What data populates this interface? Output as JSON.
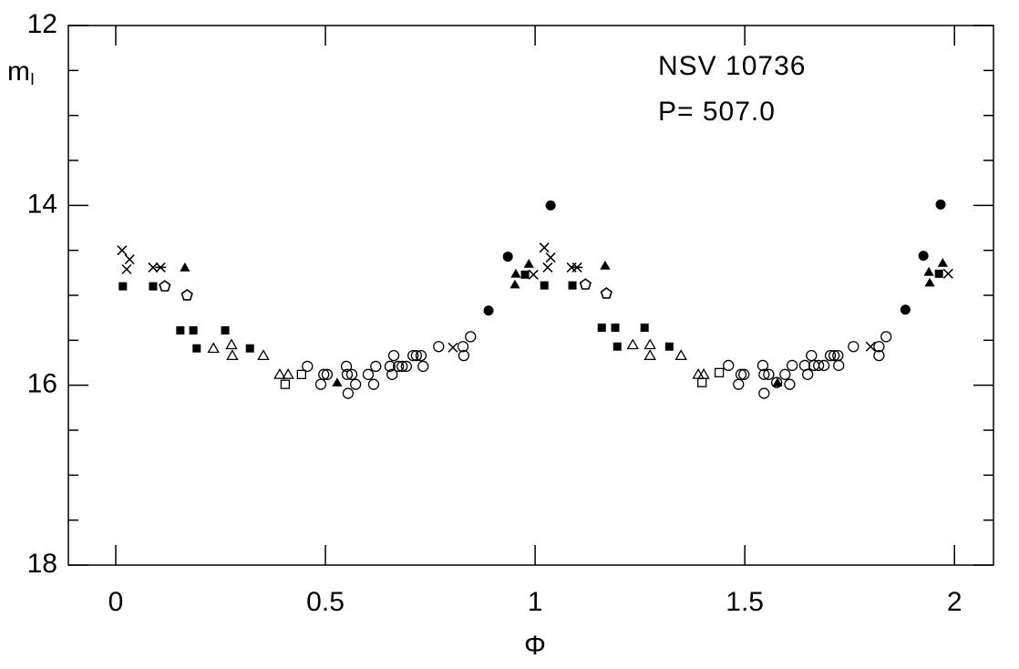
{
  "chart_data": {
    "type": "scatter",
    "xlabel": "Φ",
    "ylabel": "m",
    "ylabel_sub": "I",
    "annotations": [
      "NSV 10736",
      "P= 507.0"
    ],
    "xlim": [
      -0.113,
      2.093
    ],
    "ylim": [
      18,
      12
    ],
    "inverted_y": true,
    "xticks": [
      0,
      0.5,
      1,
      1.5,
      2
    ],
    "yticks": [
      12,
      14,
      16,
      18
    ],
    "yminor": [
      12.5,
      13,
      13.5,
      14.5,
      15,
      15.5,
      16.5,
      17,
      17.5
    ],
    "series": [
      {
        "marker": "cross",
        "color": "#000000",
        "x": [
          0.015,
          0.033,
          0.026,
          0.089,
          0.804,
          1.022,
          1.037,
          1.03,
          1.087,
          0.996,
          1.8,
          1.985
        ],
        "values": [
          14.5,
          14.6,
          14.71,
          14.69,
          15.58,
          14.47,
          14.58,
          14.69,
          14.69,
          14.77,
          15.57,
          14.76
        ]
      },
      {
        "marker": "asterisk",
        "color": "#000000",
        "x": [
          0.107,
          1.1
        ],
        "values": [
          14.69,
          14.69
        ]
      },
      {
        "marker": "filled-square",
        "color": "#000000",
        "x": [
          0.017,
          0.089,
          0.154,
          0.185,
          0.193,
          0.261,
          0.32,
          0.976,
          1.022,
          1.089,
          1.159,
          1.191,
          1.196,
          1.261,
          1.32,
          1.963
        ],
        "values": [
          14.9,
          14.9,
          15.39,
          15.39,
          15.59,
          15.39,
          15.59,
          14.77,
          14.89,
          14.89,
          15.36,
          15.36,
          15.57,
          15.36,
          15.57,
          14.76
        ]
      },
      {
        "marker": "filled-triangle",
        "color": "#000000",
        "x": [
          0.165,
          0.952,
          0.954,
          0.985,
          0.528,
          1.167,
          1.578,
          1.941,
          1.939,
          1.972
        ],
        "values": [
          14.69,
          14.88,
          14.76,
          14.65,
          15.97,
          14.67,
          15.97,
          14.86,
          14.74,
          14.64
        ]
      },
      {
        "marker": "open-triangle",
        "color": "#000000",
        "x": [
          0.233,
          0.276,
          0.278,
          0.352,
          0.391,
          0.411,
          1.233,
          1.274,
          1.274,
          1.348,
          1.389,
          1.402
        ],
        "values": [
          15.59,
          15.55,
          15.67,
          15.67,
          15.88,
          15.88,
          15.55,
          15.55,
          15.67,
          15.67,
          15.88,
          15.88
        ]
      },
      {
        "marker": "open-square",
        "color": "#000000",
        "x": [
          0.404,
          0.443,
          1.398,
          1.439
        ],
        "values": [
          15.99,
          15.88,
          15.97,
          15.86
        ]
      },
      {
        "marker": "open-pentagon",
        "color": "#000000",
        "x": [
          0.117,
          0.17,
          1.12,
          1.17
        ],
        "values": [
          14.9,
          15.0,
          14.88,
          14.98
        ]
      },
      {
        "marker": "filled-circle",
        "color": "#000000",
        "x": [
          0.889,
          0.935,
          1.037,
          1.883,
          1.926,
          1.967
        ],
        "values": [
          15.17,
          14.57,
          14.0,
          15.16,
          14.56,
          13.99
        ]
      },
      {
        "marker": "open-circle",
        "color": "#000000",
        "x": [
          0.457,
          0.489,
          0.496,
          0.504,
          0.55,
          0.552,
          0.554,
          0.563,
          0.572,
          0.602,
          0.615,
          0.62,
          0.654,
          0.659,
          0.663,
          0.674,
          0.683,
          0.693,
          0.709,
          0.717,
          0.728,
          0.733,
          0.77,
          0.828,
          0.83,
          0.846,
          1.461,
          1.485,
          1.491,
          1.498,
          1.543,
          1.546,
          1.546,
          1.557,
          1.576,
          1.596,
          1.607,
          1.613,
          1.643,
          1.65,
          1.659,
          1.665,
          1.676,
          1.689,
          1.704,
          1.713,
          1.722,
          1.724,
          1.759,
          1.82,
          1.82,
          1.837
        ],
        "values": [
          15.79,
          15.99,
          15.88,
          15.88,
          15.79,
          15.88,
          16.09,
          15.88,
          15.99,
          15.88,
          15.99,
          15.79,
          15.79,
          15.88,
          15.67,
          15.79,
          15.79,
          15.79,
          15.67,
          15.67,
          15.67,
          15.79,
          15.57,
          15.57,
          15.67,
          15.46,
          15.78,
          15.99,
          15.88,
          15.88,
          15.78,
          15.88,
          16.09,
          15.88,
          15.97,
          15.88,
          15.99,
          15.78,
          15.78,
          15.88,
          15.67,
          15.78,
          15.78,
          15.78,
          15.67,
          15.67,
          15.67,
          15.78,
          15.57,
          15.57,
          15.67,
          15.46
        ]
      }
    ]
  }
}
